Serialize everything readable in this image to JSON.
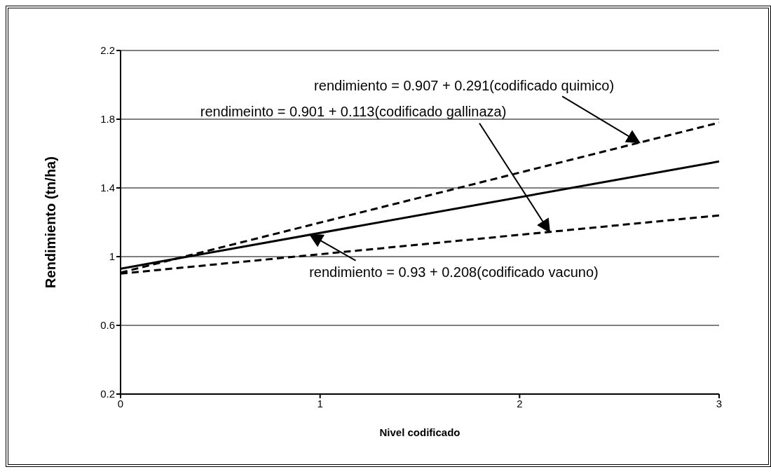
{
  "chart_data": {
    "type": "line",
    "xlabel": "Nivel codificado",
    "ylabel": "Rendimiento (tn/ha)",
    "xlim": [
      0,
      3
    ],
    "xticks": [
      0,
      1,
      2,
      3
    ],
    "ylim": [
      0.2,
      2.2
    ],
    "yticks": [
      0.2,
      0.6,
      1.0,
      1.4,
      1.8,
      2.2
    ],
    "grid": "y",
    "marker": "none",
    "x": [
      0,
      3
    ],
    "series": [
      {
        "values": [
          0.907,
          1.78
        ],
        "color": "#000000",
        "line_style": "dashed"
      },
      {
        "values": [
          0.93,
          1.554
        ],
        "color": "#000000",
        "line_style": "solid"
      },
      {
        "values": [
          0.901,
          1.24
        ],
        "color": "#000000",
        "line_style": "dashed"
      }
    ],
    "annotations": [
      {
        "text": "rendimiento = 0.907 + 0.291(codificado quimico)",
        "x": 2.6,
        "y": 1.664
      },
      {
        "text": "rendimeinto = 0.901 + 0.113(codificado gallinaza)",
        "x": 2.15,
        "y": 1.144
      },
      {
        "text": "rendimiento = 0.93 + 0.208(codificado vacuno)",
        "x": 0.95,
        "y": 1.128
      }
    ]
  }
}
